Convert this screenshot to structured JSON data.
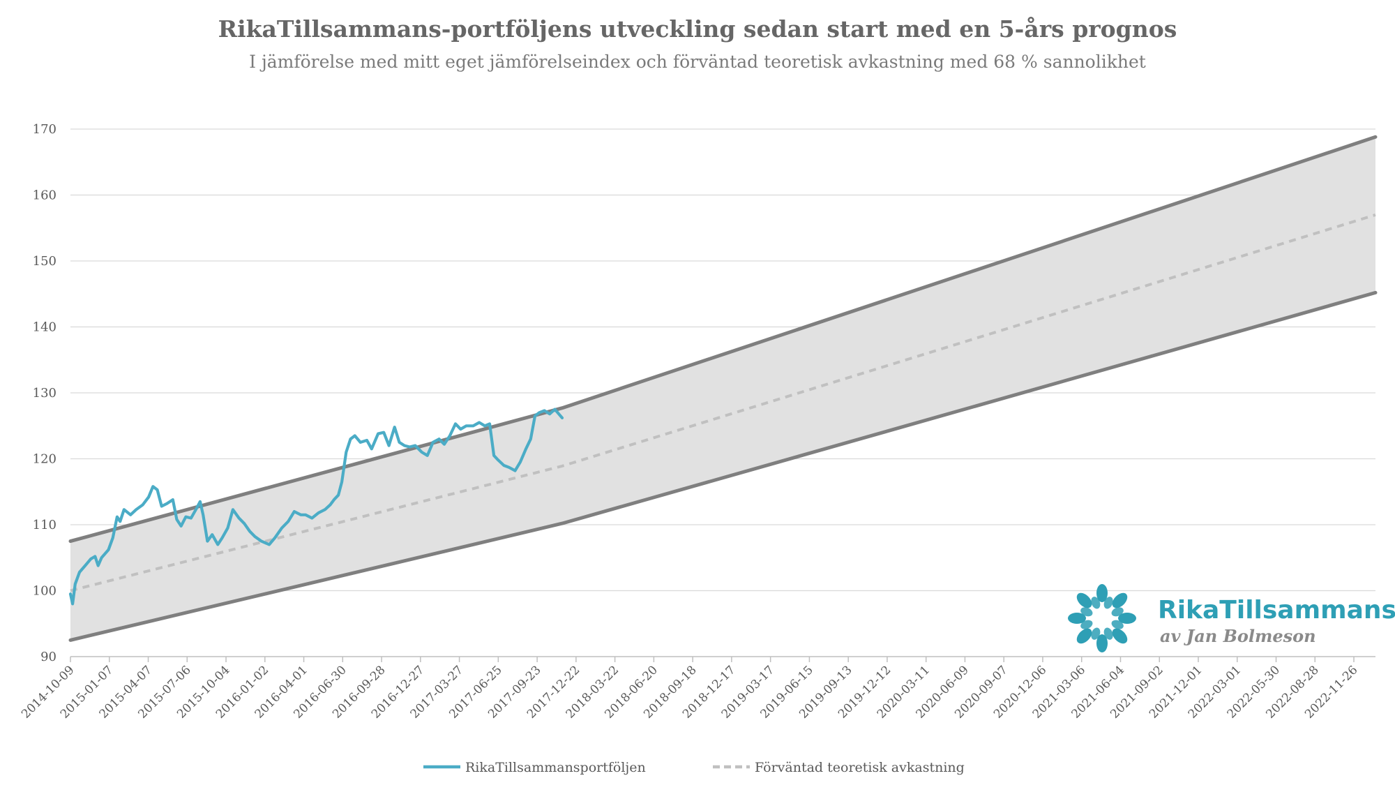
{
  "chart_data": {
    "type": "line",
    "title": "RikaTillsammans-portföljens utveckling sedan start med en 5-års prognos",
    "subtitle": "I jämförelse med mitt eget jämförelseindex och förväntad teoretisk avkastning med 68 % sannolikhet",
    "xlabel": "",
    "ylabel": "",
    "ylim": [
      90,
      170
    ],
    "yticks": [
      "90",
      "100",
      "110",
      "120",
      "130",
      "140",
      "150",
      "160",
      "170"
    ],
    "xlim": [
      "2014-10-09",
      "2023-01-15"
    ],
    "xticks": [
      "2014-10-09",
      "2015-01-07",
      "2015-04-07",
      "2015-07-06",
      "2015-10-04",
      "2016-01-02",
      "2016-04-01",
      "2016-06-30",
      "2016-09-28",
      "2016-12-27",
      "2017-03-27",
      "2017-06-25",
      "2017-09-23",
      "2017-12-22",
      "2018-03-22",
      "2018-06-20",
      "2018-09-18",
      "2018-12-17",
      "2019-03-17",
      "2019-06-15",
      "2019-09-13",
      "2019-12-12",
      "2020-03-11",
      "2020-06-09",
      "2020-09-07",
      "2020-12-06",
      "2021-03-06",
      "2021-06-04",
      "2021-09-02",
      "2021-12-01",
      "2022-03-01",
      "2022-05-30",
      "2022-08-28",
      "2022-11-26"
    ],
    "grid": true,
    "legend_position": "bottom",
    "series": [
      {
        "name": "RikaTillsammansportföljen",
        "color": "#4bacc6",
        "style": "solid",
        "points": [
          [
            "2014-10-09",
            99.5
          ],
          [
            "2014-10-14",
            98.0
          ],
          [
            "2014-10-20",
            101.0
          ],
          [
            "2014-10-30",
            102.8
          ],
          [
            "2014-11-12",
            103.8
          ],
          [
            "2014-11-25",
            104.8
          ],
          [
            "2014-12-05",
            105.2
          ],
          [
            "2014-12-12",
            103.8
          ],
          [
            "2014-12-20",
            105.0
          ],
          [
            "2015-01-05",
            106.2
          ],
          [
            "2015-01-15",
            108.0
          ],
          [
            "2015-01-25",
            111.2
          ],
          [
            "2015-02-01",
            110.5
          ],
          [
            "2015-02-10",
            112.3
          ],
          [
            "2015-02-25",
            111.5
          ],
          [
            "2015-03-10",
            112.3
          ],
          [
            "2015-03-25",
            113.0
          ],
          [
            "2015-04-08",
            114.2
          ],
          [
            "2015-04-18",
            115.8
          ],
          [
            "2015-04-28",
            115.3
          ],
          [
            "2015-05-08",
            112.8
          ],
          [
            "2015-05-20",
            113.2
          ],
          [
            "2015-06-03",
            113.8
          ],
          [
            "2015-06-12",
            110.8
          ],
          [
            "2015-06-22",
            109.8
          ],
          [
            "2015-07-03",
            111.2
          ],
          [
            "2015-07-15",
            111.0
          ],
          [
            "2015-07-28",
            112.5
          ],
          [
            "2015-08-05",
            113.5
          ],
          [
            "2015-08-12",
            111.5
          ],
          [
            "2015-08-22",
            107.5
          ],
          [
            "2015-09-02",
            108.5
          ],
          [
            "2015-09-15",
            107.0
          ],
          [
            "2015-09-25",
            108.0
          ],
          [
            "2015-10-08",
            109.5
          ],
          [
            "2015-10-20",
            112.3
          ],
          [
            "2015-11-03",
            111.0
          ],
          [
            "2015-11-15",
            110.2
          ],
          [
            "2015-11-28",
            109.0
          ],
          [
            "2015-12-10",
            108.2
          ],
          [
            "2015-12-25",
            107.5
          ],
          [
            "2016-01-12",
            107.0
          ],
          [
            "2016-01-25",
            108.0
          ],
          [
            "2016-02-10",
            109.5
          ],
          [
            "2016-02-25",
            110.5
          ],
          [
            "2016-03-10",
            112.0
          ],
          [
            "2016-03-25",
            111.5
          ],
          [
            "2016-04-05",
            111.5
          ],
          [
            "2016-04-20",
            111.0
          ],
          [
            "2016-05-05",
            111.8
          ],
          [
            "2016-05-20",
            112.3
          ],
          [
            "2016-06-01",
            113.0
          ],
          [
            "2016-06-10",
            113.8
          ],
          [
            "2016-06-20",
            114.5
          ],
          [
            "2016-06-28",
            116.5
          ],
          [
            "2016-07-08",
            121.0
          ],
          [
            "2016-07-18",
            123.0
          ],
          [
            "2016-07-28",
            123.5
          ],
          [
            "2016-08-10",
            122.5
          ],
          [
            "2016-08-25",
            122.8
          ],
          [
            "2016-09-05",
            121.5
          ],
          [
            "2016-09-20",
            123.8
          ],
          [
            "2016-10-03",
            124.0
          ],
          [
            "2016-10-15",
            122.0
          ],
          [
            "2016-10-28",
            124.8
          ],
          [
            "2016-11-08",
            122.5
          ],
          [
            "2016-11-20",
            122.0
          ],
          [
            "2016-12-02",
            121.8
          ],
          [
            "2016-12-15",
            122.0
          ],
          [
            "2016-12-30",
            121.0
          ],
          [
            "2017-01-12",
            120.5
          ],
          [
            "2017-01-25",
            122.5
          ],
          [
            "2017-02-08",
            123.0
          ],
          [
            "2017-02-20",
            122.2
          ],
          [
            "2017-03-05",
            123.5
          ],
          [
            "2017-03-18",
            125.3
          ],
          [
            "2017-03-30",
            124.5
          ],
          [
            "2017-04-12",
            125.0
          ],
          [
            "2017-04-28",
            125.0
          ],
          [
            "2017-05-12",
            125.5
          ],
          [
            "2017-05-25",
            125.0
          ],
          [
            "2017-06-05",
            125.3
          ],
          [
            "2017-06-15",
            120.5
          ],
          [
            "2017-06-25",
            119.8
          ],
          [
            "2017-07-08",
            119.0
          ],
          [
            "2017-07-20",
            118.7
          ],
          [
            "2017-08-03",
            118.2
          ],
          [
            "2017-08-15",
            119.5
          ],
          [
            "2017-08-28",
            121.5
          ],
          [
            "2017-09-08",
            123.0
          ],
          [
            "2017-09-18",
            126.5
          ],
          [
            "2017-09-28",
            127.0
          ],
          [
            "2017-10-10",
            127.3
          ],
          [
            "2017-10-22",
            126.8
          ],
          [
            "2017-11-03",
            127.5
          ],
          [
            "2017-11-12",
            126.8
          ],
          [
            "2017-11-20",
            126.2
          ]
        ]
      },
      {
        "name": "Förväntad teoretisk avkastning",
        "color": "#c0c0c0",
        "style": "dashed",
        "points": [
          [
            "2014-10-09",
            100.0
          ],
          [
            "2017-11-20",
            118.9
          ],
          [
            "2023-01-15",
            157.0
          ]
        ]
      },
      {
        "name": "",
        "color": "#7f7f7f",
        "style": "solid",
        "role": "band-upper",
        "points": [
          [
            "2014-10-09",
            107.5
          ],
          [
            "2017-11-20",
            127.7
          ],
          [
            "2023-01-15",
            168.8
          ]
        ]
      },
      {
        "name": "",
        "color": "#7f7f7f",
        "style": "solid",
        "role": "band-lower",
        "points": [
          [
            "2014-10-09",
            92.5
          ],
          [
            "2017-11-20",
            110.2
          ],
          [
            "2023-01-15",
            145.2
          ]
        ]
      }
    ],
    "band_fill": "#e1e1e1",
    "grid_color": "#d9d9d9",
    "axis_color": "#bfbfbf"
  },
  "legend": {
    "portfolio": "RikaTillsammansportföljen",
    "expected": "Förväntad teoretisk avkastning"
  },
  "logo": {
    "name": "RikaTillsammans",
    "byline": "av Jan Bolmeson",
    "color": "#2e9fb5"
  }
}
